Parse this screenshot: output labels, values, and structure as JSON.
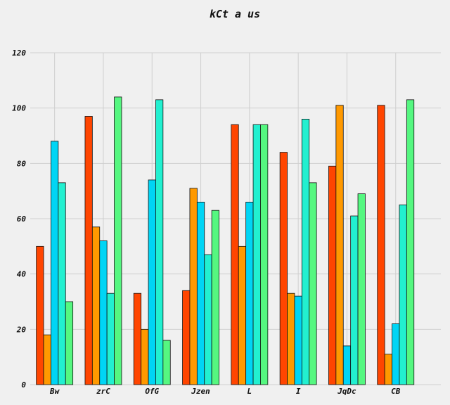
{
  "chart_data": {
    "type": "bar",
    "title": "kCt a  us",
    "xlabel": "",
    "ylabel": "",
    "categories": [
      "Bw",
      "zrC",
      "OfG",
      "Jzen",
      "L",
      "I",
      "JqDc",
      "CB"
    ],
    "ylim": [
      0,
      120
    ],
    "yticks": [
      0,
      20,
      40,
      60,
      80,
      100,
      120
    ],
    "grid": true,
    "legend": "none",
    "series": [
      {
        "color": "#ff4500",
        "values": [
          50,
          97,
          33,
          34,
          94,
          84,
          79,
          101
        ]
      },
      {
        "color": "#ff9900",
        "values": [
          18,
          57,
          20,
          71,
          50,
          33,
          101,
          11
        ]
      },
      {
        "color": "#00d5f5",
        "values": [
          88,
          52,
          74,
          66,
          66,
          32,
          14,
          22
        ]
      },
      {
        "color": "#22f0d0",
        "values": [
          73,
          33,
          103,
          47,
          94,
          96,
          61,
          65
        ]
      },
      {
        "color": "#55f780",
        "values": [
          30,
          104,
          16,
          63,
          94,
          73,
          69,
          103
        ]
      }
    ]
  }
}
